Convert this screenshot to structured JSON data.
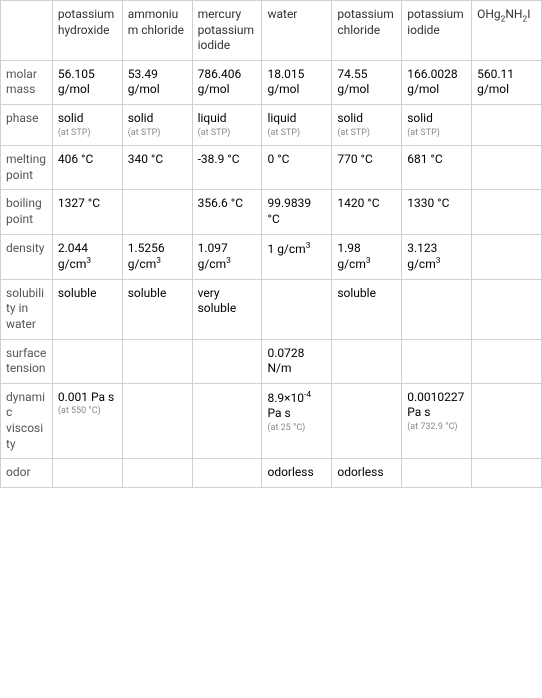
{
  "table": {
    "columns": [
      "",
      "potassium hydroxide",
      "ammonium chloride",
      "mercury potassium iodide",
      "water",
      "potassium chloride",
      "potassium iodide",
      "OHg<sub>2</sub>NH<sub>2</sub>I"
    ],
    "rows": [
      {
        "label": "molar mass",
        "cells": [
          {
            "main": "56.105 g/mol"
          },
          {
            "main": "53.49 g/mol"
          },
          {
            "main": "786.406 g/mol"
          },
          {
            "main": "18.015 g/mol"
          },
          {
            "main": "74.55 g/mol"
          },
          {
            "main": "166.0028 g/mol"
          },
          {
            "main": "560.11 g/mol"
          }
        ]
      },
      {
        "label": "phase",
        "cells": [
          {
            "main": "solid",
            "sub": "(at STP)"
          },
          {
            "main": "solid",
            "sub": "(at STP)"
          },
          {
            "main": "liquid",
            "sub": "(at STP)"
          },
          {
            "main": "liquid",
            "sub": "(at STP)"
          },
          {
            "main": "solid",
            "sub": "(at STP)"
          },
          {
            "main": "solid",
            "sub": "(at STP)"
          },
          {
            "main": ""
          }
        ]
      },
      {
        "label": "melting point",
        "cells": [
          {
            "main": "406 °C"
          },
          {
            "main": "340 °C"
          },
          {
            "main": "-38.9 °C"
          },
          {
            "main": "0 °C"
          },
          {
            "main": "770 °C"
          },
          {
            "main": "681 °C"
          },
          {
            "main": ""
          }
        ]
      },
      {
        "label": "boiling point",
        "cells": [
          {
            "main": "1327 °C"
          },
          {
            "main": ""
          },
          {
            "main": "356.6 °C"
          },
          {
            "main": "99.9839 °C"
          },
          {
            "main": "1420 °C"
          },
          {
            "main": "1330 °C"
          },
          {
            "main": ""
          }
        ]
      },
      {
        "label": "density",
        "cells": [
          {
            "main": "2.044 g/cm<sup>3</sup>"
          },
          {
            "main": "1.5256 g/cm<sup>3</sup>"
          },
          {
            "main": "1.097 g/cm<sup>3</sup>"
          },
          {
            "main": "1 g/cm<sup>3</sup>"
          },
          {
            "main": "1.98 g/cm<sup>3</sup>"
          },
          {
            "main": "3.123 g/cm<sup>3</sup>"
          },
          {
            "main": ""
          }
        ]
      },
      {
        "label": "solubility in water",
        "cells": [
          {
            "main": "soluble"
          },
          {
            "main": "soluble"
          },
          {
            "main": "very soluble"
          },
          {
            "main": ""
          },
          {
            "main": "soluble"
          },
          {
            "main": ""
          },
          {
            "main": ""
          }
        ]
      },
      {
        "label": "surface tension",
        "cells": [
          {
            "main": ""
          },
          {
            "main": ""
          },
          {
            "main": ""
          },
          {
            "main": "0.0728 N/m"
          },
          {
            "main": ""
          },
          {
            "main": ""
          },
          {
            "main": ""
          }
        ]
      },
      {
        "label": "dynamic viscosity",
        "cells": [
          {
            "main": "0.001 Pa s",
            "sub": "(at 550 °C)"
          },
          {
            "main": ""
          },
          {
            "main": ""
          },
          {
            "main": "8.9×10<sup>-4</sup> Pa s",
            "sub": "(at 25 °C)"
          },
          {
            "main": ""
          },
          {
            "main": "0.0010227 Pa s",
            "sub": "(at 732.9 °C)"
          },
          {
            "main": ""
          }
        ]
      },
      {
        "label": "odor",
        "cells": [
          {
            "main": ""
          },
          {
            "main": ""
          },
          {
            "main": ""
          },
          {
            "main": "odorless"
          },
          {
            "main": "odorless"
          },
          {
            "main": ""
          },
          {
            "main": ""
          }
        ]
      }
    ],
    "colors": {
      "border": "#d0d0d0",
      "text": "#333333",
      "sub_text": "#888888",
      "background": "#ffffff"
    },
    "col_widths": {
      "label": 46,
      "data": 62
    },
    "fontsize": 12,
    "sub_fontsize": 9
  }
}
